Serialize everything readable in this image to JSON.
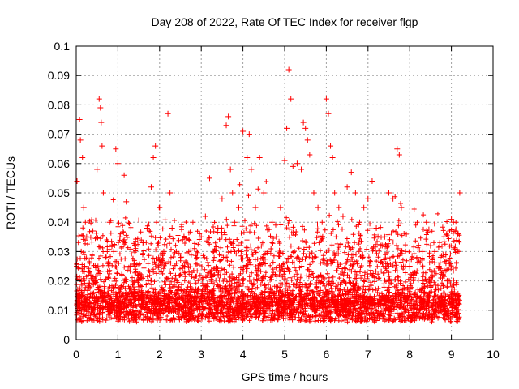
{
  "chart_data": {
    "type": "scatter",
    "title": "Day 208 of 2022, Rate Of TEC Index for receiver flgp",
    "xlabel": "GPS time / hours",
    "ylabel": "ROTI / TECUs",
    "xlim": [
      0,
      10
    ],
    "ylim": [
      0,
      0.1
    ],
    "x_ticks": [
      "0",
      "1",
      "2",
      "3",
      "4",
      "5",
      "6",
      "7",
      "8",
      "9",
      "10"
    ],
    "y_ticks": [
      "0",
      "0.01",
      "0.02",
      "0.03",
      "0.04",
      "0.05",
      "0.06",
      "0.07",
      "0.08",
      "0.09",
      "0.1"
    ],
    "grid": true,
    "marker": "plus",
    "color": "#ff0000",
    "series": [
      {
        "x": [
          0.02,
          0.05,
          0.08,
          0.1,
          0.12,
          0.15,
          0.18,
          0.2,
          0.22,
          0.25,
          0.3,
          0.35,
          0.4,
          0.45,
          0.5,
          0.55,
          0.58,
          0.6,
          0.62,
          0.65,
          0.7,
          0.8,
          0.9,
          0.95,
          1.0,
          1.05,
          1.1,
          1.15,
          1.2,
          1.3,
          1.4,
          1.5,
          1.6,
          1.7,
          1.8,
          1.85,
          1.9,
          2.0,
          2.1,
          2.2,
          2.25,
          2.3,
          2.4,
          2.5,
          2.6,
          2.7,
          2.8,
          2.9,
          3.0,
          3.1,
          3.2,
          3.3,
          3.4,
          3.5,
          3.6,
          3.65,
          3.7,
          3.75,
          3.8,
          3.9,
          4.0,
          4.1,
          4.15,
          4.2,
          4.3,
          4.4,
          4.5,
          4.6,
          4.7,
          4.8,
          4.9,
          5.0,
          5.05,
          5.1,
          5.15,
          5.2,
          5.3,
          5.4,
          5.45,
          5.5,
          5.55,
          5.6,
          5.7,
          5.8,
          5.9,
          6.0,
          6.05,
          6.1,
          6.15,
          6.2,
          6.3,
          6.4,
          6.5,
          6.6,
          6.7,
          6.8,
          6.9,
          7.0,
          7.1,
          7.2,
          7.3,
          7.4,
          7.5,
          7.6,
          7.7,
          7.75,
          7.8,
          7.9,
          8.0,
          8.1,
          8.2,
          8.3,
          8.4,
          8.5,
          8.6,
          8.7,
          8.8,
          8.9,
          9.0,
          9.05,
          9.1,
          9.15,
          9.2
        ],
        "y": [
          0.054,
          0.012,
          0.075,
          0.068,
          0.03,
          0.062,
          0.045,
          0.025,
          0.04,
          0.035,
          0.018,
          0.022,
          0.037,
          0.02,
          0.058,
          0.082,
          0.079,
          0.074,
          0.066,
          0.05,
          0.028,
          0.04,
          0.03,
          0.065,
          0.06,
          0.035,
          0.022,
          0.056,
          0.047,
          0.025,
          0.02,
          0.018,
          0.033,
          0.038,
          0.052,
          0.062,
          0.066,
          0.045,
          0.03,
          0.077,
          0.05,
          0.038,
          0.03,
          0.028,
          0.025,
          0.03,
          0.04,
          0.028,
          0.035,
          0.042,
          0.055,
          0.03,
          0.038,
          0.048,
          0.073,
          0.076,
          0.058,
          0.05,
          0.04,
          0.045,
          0.071,
          0.062,
          0.07,
          0.058,
          0.045,
          0.062,
          0.05,
          0.03,
          0.04,
          0.035,
          0.045,
          0.061,
          0.072,
          0.092,
          0.082,
          0.059,
          0.06,
          0.058,
          0.074,
          0.072,
          0.068,
          0.063,
          0.05,
          0.045,
          0.04,
          0.082,
          0.077,
          0.066,
          0.062,
          0.05,
          0.045,
          0.042,
          0.052,
          0.057,
          0.05,
          0.04,
          0.045,
          0.048,
          0.054,
          0.038,
          0.032,
          0.035,
          0.05,
          0.048,
          0.065,
          0.063,
          0.045,
          0.03,
          0.025,
          0.022,
          0.028,
          0.03,
          0.04,
          0.032,
          0.03,
          0.025,
          0.022,
          0.02,
          0.041,
          0.04,
          0.037,
          0.03,
          0.05
        ]
      }
    ]
  }
}
